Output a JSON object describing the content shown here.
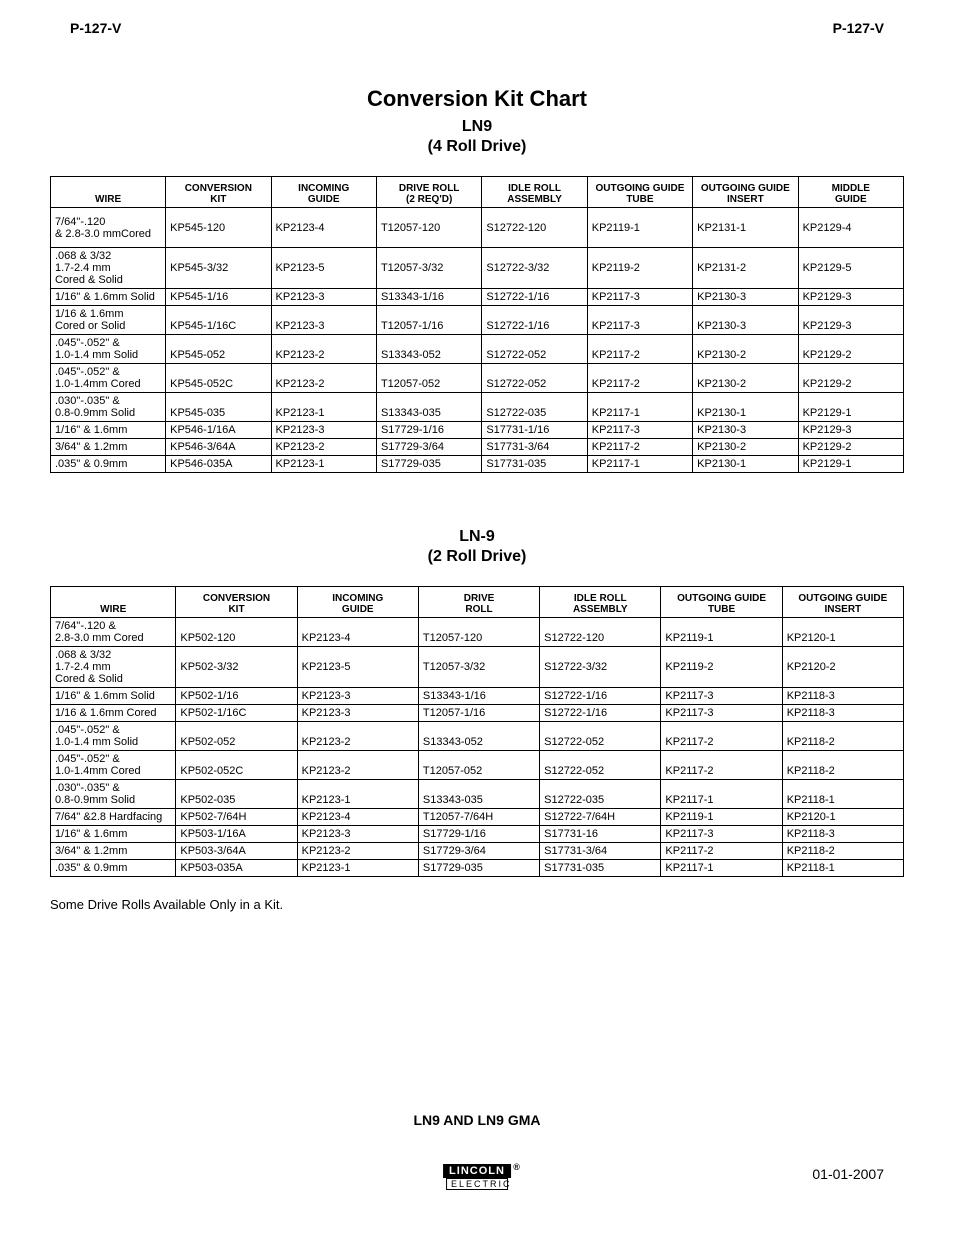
{
  "header": {
    "left": "P-127-V",
    "right": "P-127-V"
  },
  "title": {
    "main": "Conversion Kit Chart",
    "sub1": "LN9",
    "sub2": "(4 Roll Drive)"
  },
  "table1": {
    "columns": [
      "WIRE",
      "CONVERSION KIT",
      "INCOMING GUIDE",
      "DRIVE ROLL (2 REQ'D)",
      "IDLE ROLL ASSEMBLY",
      "OUTGOING GUIDE TUBE",
      "OUTGOING GUIDE INSERT",
      "MIDDLE GUIDE"
    ],
    "rows": [
      {
        "wire": [
          "7/64\"-.120",
          "& 2.8-3.0 mmCored"
        ],
        "tall": true,
        "cells": [
          "KP545-120",
          "KP2123-4",
          "T12057-120",
          "S12722-120",
          "KP2119-1",
          "KP2131-1",
          "KP2129-4"
        ]
      },
      {
        "wire": [
          ".068 & 3/32",
          "1.7-2.4 mm",
          "Cored & Solid"
        ],
        "tall": true,
        "cells": [
          "KP545-3/32",
          "KP2123-5",
          "T12057-3/32",
          "S12722-3/32",
          "KP2119-2",
          "KP2131-2",
          "KP2129-5"
        ]
      },
      {
        "wire": [
          "1/16\" & 1.6mm Solid"
        ],
        "cells": [
          "KP545-1/16",
          "KP2123-3",
          "S13343-1/16",
          "S12722-1/16",
          "KP2117-3",
          "KP2130-3",
          "KP2129-3"
        ]
      },
      {
        "wire": [
          "1/16 & 1.6mm",
          "Cored or Solid"
        ],
        "cells": [
          "KP545-1/16C",
          "KP2123-3",
          "T12057-1/16",
          "S12722-1/16",
          "KP2117-3",
          "KP2130-3",
          "KP2129-3"
        ]
      },
      {
        "wire": [
          ".045\"-.052\" &",
          "1.0-1.4 mm Solid"
        ],
        "cells": [
          "KP545-052",
          "KP2123-2",
          "S13343-052",
          "S12722-052",
          "KP2117-2",
          "KP2130-2",
          "KP2129-2"
        ]
      },
      {
        "wire": [
          ".045\"-.052\" &",
          "1.0-1.4mm Cored"
        ],
        "cells": [
          "KP545-052C",
          "KP2123-2",
          "T12057-052",
          "S12722-052",
          "KP2117-2",
          "KP2130-2",
          "KP2129-2"
        ]
      },
      {
        "wire": [
          ".030\"-.035\" &",
          "0.8-0.9mm Solid"
        ],
        "cells": [
          "KP545-035",
          "KP2123-1",
          "S13343-035",
          "S12722-035",
          "KP2117-1",
          "KP2130-1",
          "KP2129-1"
        ]
      },
      {
        "wire": [
          "1/16\" & 1.6mm"
        ],
        "cells": [
          "KP546-1/16A",
          "KP2123-3",
          "S17729-1/16",
          "S17731-1/16",
          "KP2117-3",
          "KP2130-3",
          "KP2129-3"
        ]
      },
      {
        "wire": [
          "3/64\" & 1.2mm"
        ],
        "cells": [
          "KP546-3/64A",
          "KP2123-2",
          "S17729-3/64",
          "S17731-3/64",
          "KP2117-2",
          "KP2130-2",
          "KP2129-2"
        ]
      },
      {
        "wire": [
          ".035\" & 0.9mm"
        ],
        "cells": [
          "KP546-035A",
          "KP2123-1",
          "S17729-035",
          "S17731-035",
          "KP2117-1",
          "KP2130-1",
          "KP2129-1"
        ]
      }
    ]
  },
  "section2": {
    "title": "LN-9",
    "sub": "(2 Roll Drive)"
  },
  "table2": {
    "columns": [
      "WIRE",
      "CONVERSION KIT",
      "INCOMING GUIDE",
      "DRIVE ROLL",
      "IDLE ROLL ASSEMBLY",
      "OUTGOING GUIDE TUBE",
      "OUTGOING GUIDE INSERT"
    ],
    "rows": [
      {
        "wire": [
          "7/64\"-.120 &",
          "2.8-3.0 mm Cored"
        ],
        "cells": [
          "KP502-120",
          "KP2123-4",
          "T12057-120",
          "S12722-120",
          "KP2119-1",
          "KP2120-1"
        ]
      },
      {
        "wire": [
          ".068 & 3/32",
          "1.7-2.4 mm",
          "Cored & Solid"
        ],
        "tall": true,
        "cells": [
          "KP502-3/32",
          "KP2123-5",
          "T12057-3/32",
          "S12722-3/32",
          "KP2119-2",
          "KP2120-2"
        ]
      },
      {
        "wire": [
          "1/16\" & 1.6mm Solid"
        ],
        "cells": [
          "KP502-1/16",
          "KP2123-3",
          "S13343-1/16",
          "S12722-1/16",
          "KP2117-3",
          "KP2118-3"
        ]
      },
      {
        "wire": [
          "1/16 & 1.6mm Cored"
        ],
        "cells": [
          "KP502-1/16C",
          "KP2123-3",
          "T12057-1/16",
          "S12722-1/16",
          "KP2117-3",
          "KP2118-3"
        ]
      },
      {
        "wire": [
          ".045\"-.052\" &",
          "1.0-1.4 mm Solid"
        ],
        "cells": [
          "KP502-052",
          "KP2123-2",
          "S13343-052",
          "S12722-052",
          "KP2117-2",
          "KP2118-2"
        ]
      },
      {
        "wire": [
          ".045\"-.052\" &",
          "1.0-1.4mm Cored"
        ],
        "cells": [
          "KP502-052C",
          "KP2123-2",
          "T12057-052",
          "S12722-052",
          "KP2117-2",
          "KP2118-2"
        ]
      },
      {
        "wire": [
          ".030\"-.035\" &",
          "0.8-0.9mm Solid"
        ],
        "cells": [
          "KP502-035",
          "KP2123-1",
          "S13343-035",
          "S12722-035",
          "KP2117-1",
          "KP2118-1"
        ]
      },
      {
        "wire": [
          "7/64\" &2.8 Hardfacing"
        ],
        "cells": [
          "KP502-7/64H",
          "KP2123-4",
          "T12057-7/64H",
          "S12722-7/64H",
          "KP2119-1",
          "KP2120-1"
        ]
      },
      {
        "wire": [
          "1/16\" & 1.6mm"
        ],
        "cells": [
          "KP503-1/16A",
          "KP2123-3",
          "S17729-1/16",
          "S17731-16",
          "KP2117-3",
          "KP2118-3"
        ]
      },
      {
        "wire": [
          "3/64\" & 1.2mm"
        ],
        "cells": [
          "KP503-3/64A",
          "KP2123-2",
          "S17729-3/64",
          "S17731-3/64",
          "KP2117-2",
          "KP2118-2"
        ]
      },
      {
        "wire": [
          ".035\" & 0.9mm"
        ],
        "cells": [
          "KP503-035A",
          "KP2123-1",
          "S17729-035",
          "S17731-035",
          "KP2117-1",
          "KP2118-1"
        ]
      }
    ]
  },
  "note": "Some Drive Rolls Available Only in a Kit.",
  "footer": {
    "title": "LN9 AND LN9 GMA",
    "logo_top": "LINCOLN",
    "logo_bottom": "ELECTRIC",
    "date": "01-01-2007"
  }
}
